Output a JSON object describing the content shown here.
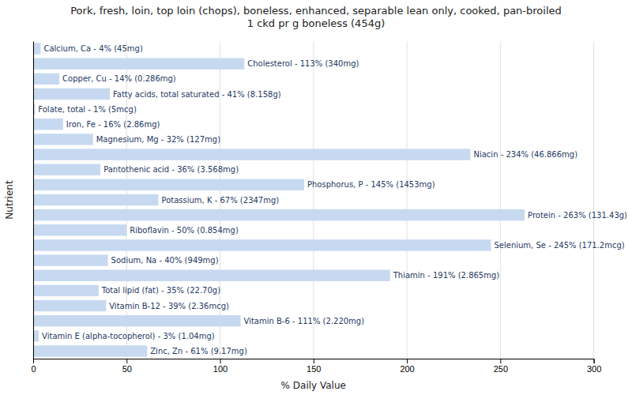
{
  "chart_data": {
    "type": "bar",
    "orientation": "horizontal",
    "title": "Pork, fresh, loin, top loin (chops), boneless, enhanced, separable lean only, cooked, pan-broiled\n1 ckd pr g boneless (454g)",
    "xlabel": "% Daily Value",
    "ylabel": "Nutrient",
    "categories": [
      "Calcium, Ca - 4% (45mg)",
      "Cholesterol - 113% (340mg)",
      "Copper, Cu - 14% (0.286mg)",
      "Fatty acids, total saturated - 41% (8.158g)",
      "Folate, total - 1% (5mcg)",
      "Iron, Fe - 16% (2.86mg)",
      "Magnesium, Mg - 32% (127mg)",
      "Niacin - 234% (46.866mg)",
      "Pantothenic acid - 36% (3.568mg)",
      "Phosphorus, P - 145% (1453mg)",
      "Potassium, K - 67% (2347mg)",
      "Protein - 263% (131.43g)",
      "Riboflavin - 50% (0.854mg)",
      "Selenium, Se - 245% (171.2mcg)",
      "Sodium, Na - 40% (949mg)",
      "Thiamin - 191% (2.865mg)",
      "Total lipid (fat) - 35% (22.70g)",
      "Vitamin B-12 - 39% (2.36mcg)",
      "Vitamin B-6 - 111% (2.220mg)",
      "Vitamin E (alpha-tocopherol) - 3% (1.04mg)",
      "Zinc, Zn - 61% (9.17mg)"
    ],
    "values": [
      4,
      113,
      14,
      41,
      1,
      16,
      32,
      234,
      36,
      145,
      67,
      263,
      50,
      245,
      40,
      191,
      35,
      39,
      111,
      3,
      61
    ],
    "color": "#c6d9f0",
    "xlim": [
      0,
      300
    ],
    "xticks": [
      0,
      50,
      100,
      150,
      200,
      250,
      300
    ],
    "grid": true,
    "tick_labels": "x"
  }
}
